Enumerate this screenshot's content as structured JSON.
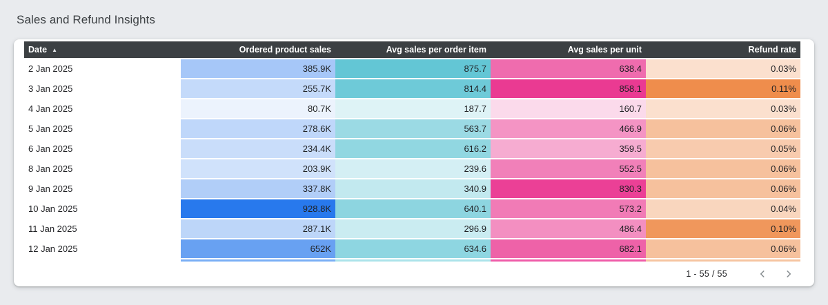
{
  "page": {
    "title": "Sales and Refund Insights",
    "background_color": "#e9ebee",
    "card_color": "#ffffff",
    "header_bar_color": "#3c4043"
  },
  "chart_data": {
    "type": "table",
    "title": "Sales and Refund Insights",
    "columns": [
      "Date",
      "Ordered product sales",
      "Avg sales per order item",
      "Avg sales per unit",
      "Refund rate"
    ],
    "sort": {
      "column": "Date",
      "direction": "asc"
    },
    "rows": [
      [
        "2 Jan 2025",
        "385.9K",
        "875.7",
        "638.4",
        "0.03%"
      ],
      [
        "3 Jan 2025",
        "255.7K",
        "814.4",
        "858.1",
        "0.11%"
      ],
      [
        "4 Jan 2025",
        "80.7K",
        "187.7",
        "160.7",
        "0.03%"
      ],
      [
        "5 Jan 2025",
        "278.6K",
        "563.7",
        "466.9",
        "0.06%"
      ],
      [
        "6 Jan 2025",
        "234.4K",
        "616.2",
        "359.5",
        "0.05%"
      ],
      [
        "8 Jan 2025",
        "203.9K",
        "239.6",
        "552.5",
        "0.06%"
      ],
      [
        "9 Jan 2025",
        "337.8K",
        "340.9",
        "830.3",
        "0.06%"
      ],
      [
        "10 Jan 2025",
        "928.8K",
        "640.1",
        "573.2",
        "0.04%"
      ],
      [
        "11 Jan 2025",
        "287.1K",
        "296.9",
        "486.4",
        "0.10%"
      ],
      [
        "12 Jan 2025",
        "652K",
        "634.6",
        "682.1",
        "0.06%"
      ]
    ],
    "numeric": {
      "ordered_product_sales": [
        385900,
        255700,
        80700,
        278600,
        234400,
        203900,
        337800,
        928800,
        287100,
        652000
      ],
      "avg_sales_per_order_item": [
        875.7,
        814.4,
        187.7,
        563.7,
        616.2,
        239.6,
        340.9,
        640.1,
        296.9,
        634.6
      ],
      "avg_sales_per_unit": [
        638.4,
        858.1,
        160.7,
        466.9,
        359.5,
        552.5,
        830.3,
        573.2,
        486.4,
        682.1
      ],
      "refund_rate_pct": [
        0.03,
        0.11,
        0.03,
        0.06,
        0.05,
        0.06,
        0.06,
        0.04,
        0.1,
        0.06
      ]
    }
  },
  "table": {
    "heat_columns": [
      {
        "key": "ordered_product_sales",
        "base": "#2879ed",
        "max": 928800
      },
      {
        "key": "avg_sales_per_order_item",
        "base": "#63c6d5",
        "max": 875.7
      },
      {
        "key": "avg_sales_per_unit",
        "base": "#ea3a92",
        "max": 858.1
      },
      {
        "key": "refund_rate_pct",
        "base": "#ef8d4c",
        "max": 0.11
      }
    ],
    "partial_row_colors": [
      "#79aef5",
      "#abe3ea",
      "#ef5ba8",
      "#f6c4a0"
    ],
    "sort_arrow": "▲"
  },
  "pagination": {
    "range_label": "1 - 55 / 55",
    "prev_icon": "chevron-left",
    "next_icon": "chevron-right"
  }
}
